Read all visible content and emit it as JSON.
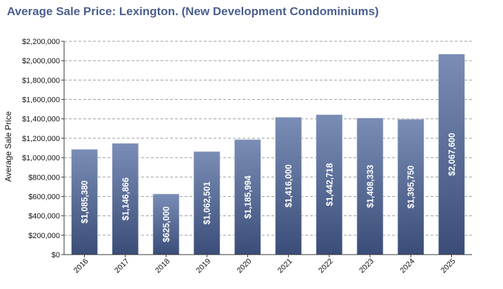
{
  "colors": {
    "title": "#4a5f8e",
    "bar_top": "#7a8db6",
    "bar_bottom": "#3a4d78",
    "grid": "#9a9a9a",
    "axis": "#333333"
  },
  "chart_data": {
    "type": "bar",
    "title": "Average Sale Price: Lexington. (New Development Condominiums)",
    "xlabel": "",
    "ylabel": "Average Sale Price",
    "ylim": [
      0,
      2200000
    ],
    "ytick_step": 200000,
    "grid": true,
    "categories": [
      "2016",
      "2017",
      "2018",
      "2019",
      "2020",
      "2021",
      "2022",
      "2023",
      "2024",
      "2025"
    ],
    "values": [
      1085380,
      1146866,
      625000,
      1062501,
      1185994,
      1416000,
      1442718,
      1408333,
      1395750,
      2067600
    ],
    "data_labels": [
      "$1,085,380",
      "$1,146,866",
      "$625,000",
      "$1,062,501",
      "$1,185,994",
      "$1,416,000",
      "$1,442,718",
      "$1,408,333",
      "$1,395,750",
      "$2,067,600"
    ],
    "ytick_labels": [
      "$0",
      "$200,000",
      "$400,000",
      "$600,000",
      "$800,000",
      "$1,000,000",
      "$1,200,000",
      "$1,400,000",
      "$1,600,000",
      "$1,800,000",
      "$2,000,000",
      "$2,200,000"
    ]
  }
}
